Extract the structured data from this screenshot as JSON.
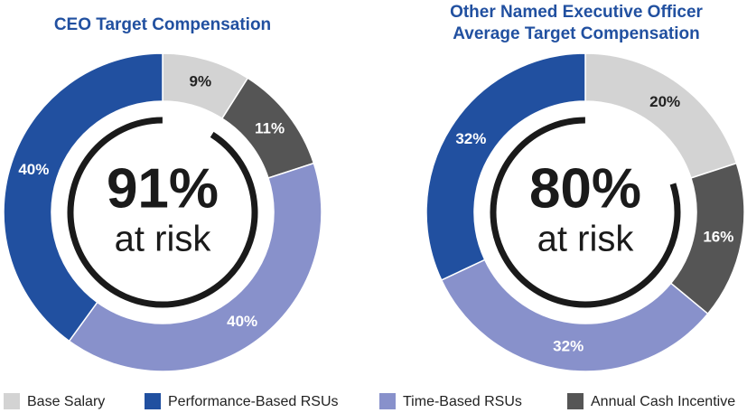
{
  "chart_data": [
    {
      "type": "pie",
      "title": "CEO Target Compensation",
      "categories": [
        "Base Salary",
        "Annual Cash Incentive",
        "Time-Based RSUs",
        "Performance-Based RSUs"
      ],
      "values": [
        9,
        11,
        40,
        40
      ],
      "value_labels": [
        "9%",
        "11%",
        "40%",
        "40%"
      ],
      "colors": [
        "#d3d3d3",
        "#555555",
        "#8891cb",
        "#2150a0"
      ],
      "annotations": [
        "91%",
        "at risk"
      ]
    },
    {
      "type": "pie",
      "title": "Other Named Executive Officer Average Target Compensation",
      "categories": [
        "Base Salary",
        "Annual Cash Incentive",
        "Time-Based RSUs",
        "Performance-Based RSUs"
      ],
      "values": [
        20,
        16,
        32,
        32
      ],
      "value_labels": [
        "20%",
        "16%",
        "32%",
        "32%"
      ],
      "colors": [
        "#d3d3d3",
        "#555555",
        "#8891cb",
        "#2150a0"
      ],
      "annotations": [
        "80%",
        "at risk"
      ]
    }
  ]
}
